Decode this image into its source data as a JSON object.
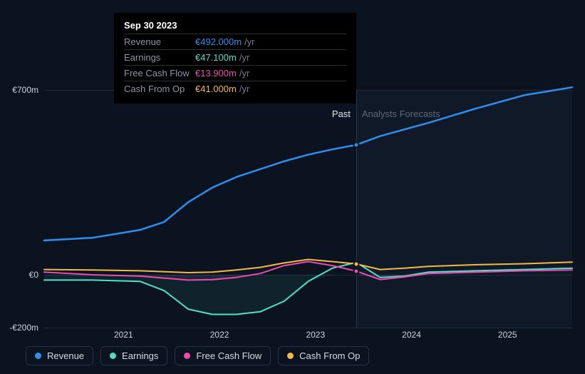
{
  "chart": {
    "type": "line",
    "background_color": "#0b1320",
    "grid_color": "#1e2a3a",
    "currency_prefix": "€",
    "y": {
      "min": -200,
      "max": 700,
      "ticks": [
        {
          "value": 700,
          "label": "€700m"
        },
        {
          "value": 0,
          "label": "€0"
        },
        {
          "value": -200,
          "label": "-€200m"
        }
      ]
    },
    "x": {
      "min": 2020.5,
      "max": 2026.0,
      "ticks": [
        {
          "value": 2021,
          "label": "2021"
        },
        {
          "value": 2022,
          "label": "2022"
        },
        {
          "value": 2023,
          "label": "2023"
        },
        {
          "value": 2024,
          "label": "2024"
        },
        {
          "value": 2025,
          "label": "2025"
        }
      ],
      "reference_line": 2023.75
    },
    "labels": {
      "past": "Past",
      "future": "Analysts Forecasts"
    },
    "series": [
      {
        "key": "revenue",
        "label": "Revenue",
        "color": "#2f8fef",
        "line_width": 2.5,
        "marker_at_ref": true,
        "data": [
          [
            2020.5,
            130
          ],
          [
            2021,
            140
          ],
          [
            2021.5,
            170
          ],
          [
            2021.75,
            200
          ],
          [
            2022,
            275
          ],
          [
            2022.25,
            330
          ],
          [
            2022.5,
            370
          ],
          [
            2022.75,
            400
          ],
          [
            2023,
            430
          ],
          [
            2023.25,
            455
          ],
          [
            2023.5,
            475
          ],
          [
            2023.75,
            492
          ],
          [
            2024,
            525
          ],
          [
            2024.5,
            575
          ],
          [
            2025,
            630
          ],
          [
            2025.5,
            680
          ],
          [
            2026,
            710
          ]
        ]
      },
      {
        "key": "earnings",
        "label": "Earnings",
        "color": "#4fe0c6",
        "line_width": 2,
        "fill_below_zero": "rgba(79,224,198,0.08)",
        "data": [
          [
            2020.5,
            -20
          ],
          [
            2021,
            -20
          ],
          [
            2021.5,
            -25
          ],
          [
            2021.75,
            -60
          ],
          [
            2022,
            -130
          ],
          [
            2022.25,
            -150
          ],
          [
            2022.5,
            -150
          ],
          [
            2022.75,
            -140
          ],
          [
            2023,
            -100
          ],
          [
            2023.25,
            -25
          ],
          [
            2023.5,
            25
          ],
          [
            2023.75,
            47
          ],
          [
            2024,
            -10
          ],
          [
            2024.25,
            -5
          ],
          [
            2024.5,
            10
          ],
          [
            2025,
            15
          ],
          [
            2025.5,
            20
          ],
          [
            2026,
            25
          ]
        ]
      },
      {
        "key": "fcf",
        "label": "Free Cash Flow",
        "color": "#e94db0",
        "line_width": 2,
        "fill_below_zero": "rgba(233,77,176,0.08)",
        "marker_at_ref": true,
        "data": [
          [
            2020.5,
            10
          ],
          [
            2021,
            0
          ],
          [
            2021.5,
            -5
          ],
          [
            2022,
            -20
          ],
          [
            2022.25,
            -18
          ],
          [
            2022.5,
            -10
          ],
          [
            2022.75,
            5
          ],
          [
            2023,
            35
          ],
          [
            2023.25,
            50
          ],
          [
            2023.5,
            35
          ],
          [
            2023.75,
            14
          ],
          [
            2024,
            -18
          ],
          [
            2024.25,
            -8
          ],
          [
            2024.5,
            5
          ],
          [
            2025,
            10
          ],
          [
            2025.5,
            15
          ],
          [
            2026,
            18
          ]
        ]
      },
      {
        "key": "cfo",
        "label": "Cash From Op",
        "color": "#f0b94a",
        "line_width": 2,
        "marker_at_ref": true,
        "data": [
          [
            2020.5,
            20
          ],
          [
            2021,
            18
          ],
          [
            2021.5,
            15
          ],
          [
            2022,
            8
          ],
          [
            2022.25,
            10
          ],
          [
            2022.5,
            18
          ],
          [
            2022.75,
            28
          ],
          [
            2023,
            45
          ],
          [
            2023.25,
            58
          ],
          [
            2023.5,
            50
          ],
          [
            2023.75,
            41
          ],
          [
            2024,
            20
          ],
          [
            2024.25,
            25
          ],
          [
            2024.5,
            32
          ],
          [
            2025,
            38
          ],
          [
            2025.5,
            42
          ],
          [
            2026,
            48
          ]
        ]
      }
    ]
  },
  "tooltip": {
    "date": "Sep 30 2023",
    "unit": "/yr",
    "rows": [
      {
        "label": "Revenue",
        "value": "€492.000m",
        "color": "#2f8fef"
      },
      {
        "label": "Earnings",
        "value": "€47.100m",
        "color": "#4fe0c6"
      },
      {
        "label": "Free Cash Flow",
        "value": "€13.900m",
        "color": "#e94db0"
      },
      {
        "label": "Cash From Op",
        "value": "€41.000m",
        "color": "#f0b94a"
      }
    ]
  },
  "legend": {
    "items": [
      {
        "label": "Revenue",
        "color": "#2f8fef"
      },
      {
        "label": "Earnings",
        "color": "#4fe0c6"
      },
      {
        "label": "Free Cash Flow",
        "color": "#e94db0"
      },
      {
        "label": "Cash From Op",
        "color": "#f0b94a"
      }
    ]
  }
}
